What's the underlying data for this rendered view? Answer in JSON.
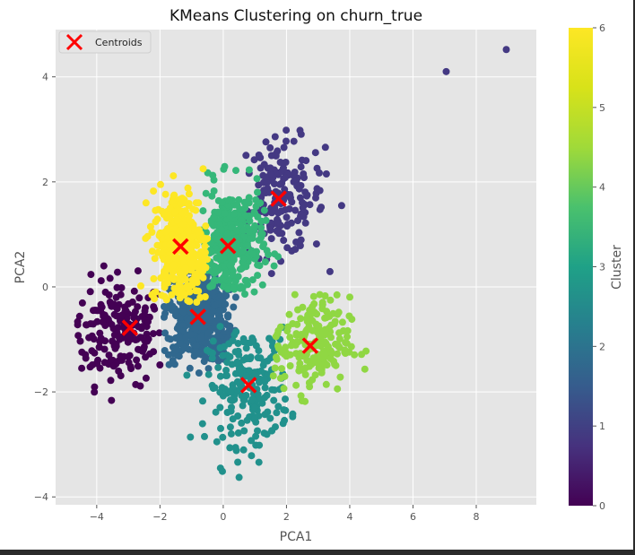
{
  "chart_data": {
    "type": "scatter",
    "title": "KMeans Clustering on churn_true",
    "xlabel": "PCA1",
    "ylabel": "PCA2",
    "xlim": [
      -5.3,
      9.9
    ],
    "ylim": [
      -4.15,
      4.9
    ],
    "xticks": [
      "−4",
      "−2",
      "0",
      "2",
      "4",
      "6",
      "8"
    ],
    "yticks": [
      "−4",
      "−2",
      "0",
      "2",
      "4"
    ],
    "grid": true,
    "legend": {
      "position": "upper-left",
      "entries": [
        "Centroids"
      ]
    },
    "colorbar": {
      "label": "Cluster",
      "min": 0,
      "max": 6,
      "ticks": [
        "0",
        "1",
        "2",
        "3",
        "4",
        "5",
        "6"
      ],
      "colormap": "viridis"
    },
    "clusters": [
      {
        "id": 0,
        "color": "#440154",
        "center": [
          -3.3,
          -0.85
        ],
        "spread": [
          0.75,
          0.5
        ],
        "count": 190,
        "xrange": [
          -4.7,
          -2.0
        ],
        "yrange": [
          -2.2,
          0.6
        ]
      },
      {
        "id": 1,
        "color": "#443983",
        "center": [
          1.8,
          1.7
        ],
        "spread": [
          0.7,
          0.55
        ],
        "count": 180,
        "xrange": [
          0.7,
          3.8
        ],
        "yrange": [
          0.2,
          3.4
        ]
      },
      {
        "id": 2,
        "color": "#31688e",
        "center": [
          -0.8,
          -0.55
        ],
        "spread": [
          0.55,
          0.45
        ],
        "count": 480,
        "xrange": [
          -1.9,
          0.4
        ],
        "yrange": [
          -1.8,
          0.35
        ]
      },
      {
        "id": 3,
        "color": "#21918c",
        "center": [
          0.8,
          -1.9
        ],
        "spread": [
          0.65,
          0.55
        ],
        "count": 220,
        "xrange": [
          -1.3,
          2.4
        ],
        "yrange": [
          -3.8,
          -0.7
        ]
      },
      {
        "id": 4,
        "color": "#35b779",
        "center": [
          0.25,
          0.8
        ],
        "spread": [
          0.5,
          0.55
        ],
        "count": 330,
        "xrange": [
          -0.7,
          1.8
        ],
        "yrange": [
          -0.2,
          2.3
        ]
      },
      {
        "id": 5,
        "color": "#90d743",
        "center": [
          2.8,
          -1.1
        ],
        "spread": [
          0.6,
          0.45
        ],
        "count": 200,
        "xrange": [
          1.5,
          4.8
        ],
        "yrange": [
          -2.7,
          0.2
        ]
      },
      {
        "id": 6,
        "color": "#fde725",
        "center": [
          -1.35,
          0.75
        ],
        "spread": [
          0.45,
          0.55
        ],
        "count": 360,
        "xrange": [
          -2.7,
          -0.5
        ],
        "yrange": [
          -0.3,
          2.3
        ]
      }
    ],
    "outliers": [
      {
        "x": 7.05,
        "y": 4.1,
        "cluster": 1
      },
      {
        "x": 8.95,
        "y": 4.52,
        "cluster": 1
      }
    ],
    "centroids": [
      {
        "x": -2.95,
        "y": -0.78
      },
      {
        "x": 1.75,
        "y": 1.68
      },
      {
        "x": -0.8,
        "y": -0.57
      },
      {
        "x": 0.8,
        "y": -1.87
      },
      {
        "x": 0.15,
        "y": 0.78
      },
      {
        "x": 2.75,
        "y": -1.12
      },
      {
        "x": -1.35,
        "y": 0.77
      }
    ],
    "centroid_color": "#ff0000"
  }
}
